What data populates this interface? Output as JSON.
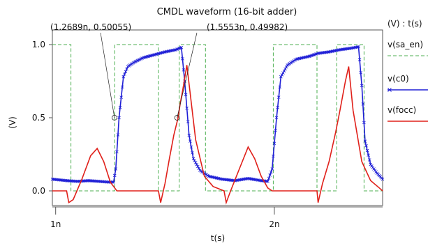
{
  "chart_data": {
    "type": "line",
    "title": "CMDL waveform (16-bit adder)",
    "xlabel": "t(s)",
    "ylabel": "(V)",
    "legend_header": "(V) : t(s)",
    "legend_position": "right",
    "xlim": [
      0.985,
      2.495
    ],
    "ylim": [
      -0.1,
      1.1
    ],
    "x_ticks": [
      {
        "value": 1.0,
        "label": "1n"
      },
      {
        "value": 2.0,
        "label": "2n"
      }
    ],
    "y_ticks": [
      {
        "value": 0.0,
        "label": "0.0"
      },
      {
        "value": 0.5,
        "label": "0.5"
      },
      {
        "value": 1.0,
        "label": "1.0"
      }
    ],
    "x_units": "ns",
    "colors": {
      "sa_en": "#4caf50",
      "c0": "#1f1fd6",
      "focc": "#e0201a"
    },
    "series": [
      {
        "name": "v(sa_en)",
        "color": "#4caf50",
        "style": "dashed",
        "x": [
          0.985,
          1.07,
          1.07,
          1.27,
          1.27,
          1.47,
          1.47,
          1.565,
          1.565,
          1.685,
          1.685,
          1.77,
          1.77,
          1.995,
          1.995,
          2.195,
          2.195,
          2.285,
          2.285,
          2.41,
          2.41,
          2.495
        ],
        "y": [
          1.0,
          1.0,
          0.0,
          0.0,
          1.0,
          1.0,
          0.0,
          0.0,
          1.0,
          1.0,
          0.0,
          0.0,
          0.0,
          0.0,
          1.0,
          1.0,
          0.0,
          0.0,
          1.0,
          1.0,
          0.0,
          0.0
        ]
      },
      {
        "name": "v(c0)",
        "color": "#1f1fd6",
        "marker": "x",
        "x": [
          0.985,
          1.05,
          1.1,
          1.15,
          1.2,
          1.24,
          1.265,
          1.275,
          1.29,
          1.31,
          1.33,
          1.36,
          1.4,
          1.45,
          1.5,
          1.55,
          1.575,
          1.59,
          1.61,
          1.63,
          1.66,
          1.7,
          1.76,
          1.82,
          1.88,
          1.94,
          1.97,
          1.99,
          2.01,
          2.03,
          2.06,
          2.1,
          2.16,
          2.2,
          2.25,
          2.3,
          2.35,
          2.385,
          2.4,
          2.415,
          2.44,
          2.47,
          2.495
        ],
        "y": [
          0.08,
          0.07,
          0.065,
          0.07,
          0.065,
          0.06,
          0.06,
          0.15,
          0.5,
          0.78,
          0.85,
          0.88,
          0.91,
          0.93,
          0.95,
          0.965,
          0.98,
          0.75,
          0.38,
          0.22,
          0.14,
          0.1,
          0.08,
          0.07,
          0.085,
          0.07,
          0.065,
          0.15,
          0.5,
          0.78,
          0.86,
          0.9,
          0.92,
          0.94,
          0.95,
          0.965,
          0.975,
          0.985,
          0.72,
          0.34,
          0.18,
          0.12,
          0.08
        ]
      },
      {
        "name": "v(focc)",
        "color": "#e0201a",
        "x": [
          0.985,
          1.05,
          1.06,
          1.08,
          1.12,
          1.16,
          1.19,
          1.22,
          1.25,
          1.27,
          1.28,
          1.3,
          1.35,
          1.4,
          1.47,
          1.48,
          1.5,
          1.52,
          1.54,
          1.56,
          1.57,
          1.58,
          1.6,
          1.64,
          1.68,
          1.72,
          1.77,
          1.78,
          1.8,
          1.84,
          1.88,
          1.91,
          1.94,
          1.97,
          1.99,
          2.0,
          2.05,
          2.1,
          2.15,
          2.195,
          2.2,
          2.22,
          2.25,
          2.28,
          2.3,
          2.325,
          2.34,
          2.36,
          2.4,
          2.44,
          2.48,
          2.495
        ],
        "y": [
          0.0,
          0.0,
          -0.08,
          -0.06,
          0.08,
          0.24,
          0.29,
          0.2,
          0.06,
          0.02,
          0.0,
          0.0,
          0.0,
          0.0,
          0.0,
          -0.08,
          0.05,
          0.22,
          0.38,
          0.5,
          0.6,
          0.68,
          0.86,
          0.35,
          0.1,
          0.03,
          0.0,
          -0.08,
          0.0,
          0.15,
          0.3,
          0.22,
          0.1,
          0.02,
          0.0,
          0.0,
          0.0,
          0.0,
          0.0,
          0.0,
          -0.08,
          0.05,
          0.2,
          0.4,
          0.55,
          0.75,
          0.85,
          0.55,
          0.2,
          0.07,
          0.02,
          0.0
        ]
      }
    ],
    "annotations": [
      {
        "text": "(1.2689n, 0.50055)",
        "x": 1.2689,
        "y": 0.50055
      },
      {
        "text": "(1.5553n, 0.49982)",
        "x": 1.5553,
        "y": 0.49982
      }
    ]
  }
}
